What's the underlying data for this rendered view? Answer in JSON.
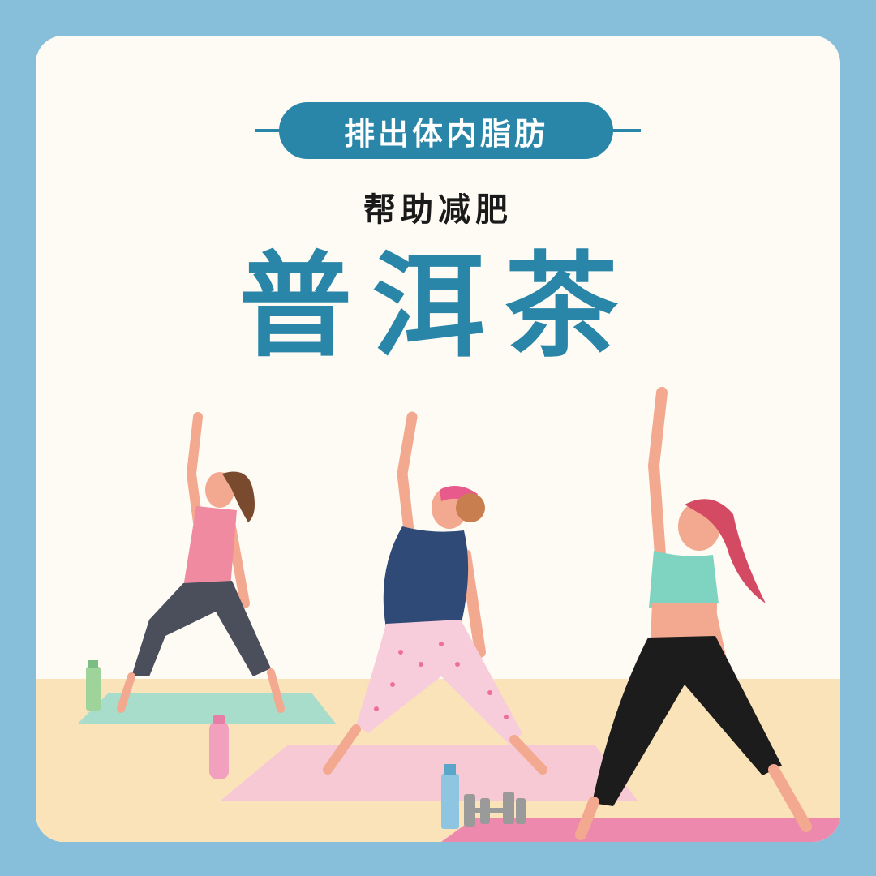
{
  "badge": {
    "text": "排出体内脂肪"
  },
  "subtitle": "帮助减肥",
  "title": "普洱茶",
  "colors": {
    "frame": "#87bfdb",
    "accent": "#2a86a8",
    "floor": "#fae3b8",
    "mat_green": "#a8dccb",
    "mat_pink_light": "#f6c9d4",
    "mat_pink": "#ec89ac"
  },
  "illustration": {
    "subject": "three-women-doing-yoga-triangle-pose",
    "props": [
      "green-bottle-icon",
      "pink-water-bottle-icon",
      "blue-bottle-icon",
      "dumbbells-icon"
    ]
  }
}
